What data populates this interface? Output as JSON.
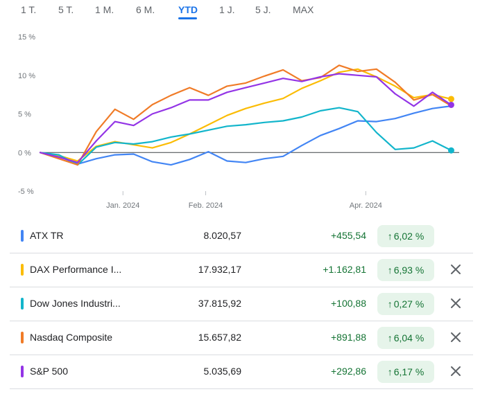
{
  "tabs": [
    {
      "label": "1 T."
    },
    {
      "label": "5 T."
    },
    {
      "label": "1 M."
    },
    {
      "label": "6 M."
    },
    {
      "label": "YTD",
      "active": true
    },
    {
      "label": "1 J."
    },
    {
      "label": "5 J."
    },
    {
      "label": "MAX"
    }
  ],
  "chart_data": {
    "type": "line",
    "y_unit": "%",
    "ylim": [
      -5,
      15
    ],
    "yticks": [
      "15 %",
      "10 %",
      "5 %",
      "0 %",
      "-5 %"
    ],
    "ytick_values": [
      15,
      10,
      5,
      0,
      -5
    ],
    "x_range": [
      "2023-12-01",
      "2024-05-06"
    ],
    "xticks": [
      {
        "label": "Jan. 2024",
        "date": "2024-01-01"
      },
      {
        "label": "Feb. 2024",
        "date": "2024-02-01"
      },
      {
        "label": "Apr. 2024",
        "date": "2024-04-01"
      }
    ],
    "baseline": 0,
    "series": [
      {
        "name": "ATX TR",
        "color": "#4285f4",
        "end_marker": false,
        "points": [
          [
            "2023-12-01",
            0
          ],
          [
            "2023-12-08",
            -0.5
          ],
          [
            "2023-12-15",
            -1.5
          ],
          [
            "2023-12-22",
            -0.8
          ],
          [
            "2023-12-29",
            -0.3
          ],
          [
            "2024-01-05",
            -0.2
          ],
          [
            "2024-01-12",
            -1.2
          ],
          [
            "2024-01-19",
            -1.6
          ],
          [
            "2024-01-26",
            -0.9
          ],
          [
            "2024-02-02",
            0.1
          ],
          [
            "2024-02-09",
            -1.1
          ],
          [
            "2024-02-16",
            -1.3
          ],
          [
            "2024-02-23",
            -0.8
          ],
          [
            "2024-03-01",
            -0.5
          ],
          [
            "2024-03-08",
            0.9
          ],
          [
            "2024-03-15",
            2.2
          ],
          [
            "2024-03-22",
            3.1
          ],
          [
            "2024-03-29",
            4.1
          ],
          [
            "2024-04-05",
            4.0
          ],
          [
            "2024-04-12",
            4.4
          ],
          [
            "2024-04-19",
            5.1
          ],
          [
            "2024-04-26",
            5.7
          ],
          [
            "2024-05-03",
            6.02
          ]
        ]
      },
      {
        "name": "DAX Performance I...",
        "color": "#fbbc04",
        "end_marker": true,
        "points": [
          [
            "2023-12-01",
            0
          ],
          [
            "2023-12-08",
            -0.4
          ],
          [
            "2023-12-15",
            -1.1
          ],
          [
            "2023-12-22",
            0.8
          ],
          [
            "2023-12-29",
            1.4
          ],
          [
            "2024-01-05",
            1.0
          ],
          [
            "2024-01-12",
            0.6
          ],
          [
            "2024-01-19",
            1.3
          ],
          [
            "2024-01-26",
            2.4
          ],
          [
            "2024-02-02",
            3.6
          ],
          [
            "2024-02-09",
            4.8
          ],
          [
            "2024-02-16",
            5.7
          ],
          [
            "2024-02-23",
            6.4
          ],
          [
            "2024-03-01",
            7.0
          ],
          [
            "2024-03-08",
            8.3
          ],
          [
            "2024-03-15",
            9.3
          ],
          [
            "2024-03-22",
            10.4
          ],
          [
            "2024-03-29",
            10.8
          ],
          [
            "2024-04-05",
            9.8
          ],
          [
            "2024-04-12",
            8.6
          ],
          [
            "2024-04-19",
            7.1
          ],
          [
            "2024-04-26",
            7.5
          ],
          [
            "2024-05-03",
            6.93
          ]
        ]
      },
      {
        "name": "Dow Jones Industri...",
        "color": "#12b5cb",
        "end_marker": true,
        "points": [
          [
            "2023-12-01",
            0
          ],
          [
            "2023-12-08",
            -0.3
          ],
          [
            "2023-12-15",
            -1.6
          ],
          [
            "2023-12-22",
            0.7
          ],
          [
            "2023-12-29",
            1.3
          ],
          [
            "2024-01-05",
            1.1
          ],
          [
            "2024-01-12",
            1.4
          ],
          [
            "2024-01-19",
            2.0
          ],
          [
            "2024-01-26",
            2.4
          ],
          [
            "2024-02-02",
            2.9
          ],
          [
            "2024-02-09",
            3.4
          ],
          [
            "2024-02-16",
            3.6
          ],
          [
            "2024-02-23",
            3.9
          ],
          [
            "2024-03-01",
            4.1
          ],
          [
            "2024-03-08",
            4.6
          ],
          [
            "2024-03-15",
            5.4
          ],
          [
            "2024-03-22",
            5.8
          ],
          [
            "2024-03-29",
            5.3
          ],
          [
            "2024-04-05",
            2.6
          ],
          [
            "2024-04-12",
            0.4
          ],
          [
            "2024-04-19",
            0.6
          ],
          [
            "2024-04-26",
            1.5
          ],
          [
            "2024-05-03",
            0.27
          ]
        ]
      },
      {
        "name": "Nasdaq Composite",
        "color": "#f07b27",
        "end_marker": false,
        "points": [
          [
            "2023-12-01",
            0
          ],
          [
            "2023-12-08",
            -0.8
          ],
          [
            "2023-12-15",
            -1.6
          ],
          [
            "2023-12-22",
            2.7
          ],
          [
            "2023-12-29",
            5.6
          ],
          [
            "2024-01-05",
            4.3
          ],
          [
            "2024-01-12",
            6.2
          ],
          [
            "2024-01-19",
            7.4
          ],
          [
            "2024-01-26",
            8.4
          ],
          [
            "2024-02-02",
            7.4
          ],
          [
            "2024-02-09",
            8.6
          ],
          [
            "2024-02-16",
            9.0
          ],
          [
            "2024-02-23",
            9.9
          ],
          [
            "2024-03-01",
            10.7
          ],
          [
            "2024-03-08",
            9.3
          ],
          [
            "2024-03-15",
            9.7
          ],
          [
            "2024-03-22",
            11.3
          ],
          [
            "2024-03-29",
            10.5
          ],
          [
            "2024-04-05",
            10.8
          ],
          [
            "2024-04-12",
            9.1
          ],
          [
            "2024-04-19",
            6.8
          ],
          [
            "2024-04-26",
            7.5
          ],
          [
            "2024-05-03",
            6.04
          ]
        ]
      },
      {
        "name": "S&P 500",
        "color": "#9334e6",
        "end_marker": true,
        "points": [
          [
            "2023-12-01",
            0
          ],
          [
            "2023-12-08",
            -0.6
          ],
          [
            "2023-12-15",
            -1.3
          ],
          [
            "2023-12-22",
            1.5
          ],
          [
            "2023-12-29",
            4.0
          ],
          [
            "2024-01-05",
            3.5
          ],
          [
            "2024-01-12",
            5.0
          ],
          [
            "2024-01-19",
            5.8
          ],
          [
            "2024-01-26",
            6.8
          ],
          [
            "2024-02-02",
            6.8
          ],
          [
            "2024-02-09",
            7.8
          ],
          [
            "2024-02-16",
            8.4
          ],
          [
            "2024-02-23",
            9.0
          ],
          [
            "2024-03-01",
            9.6
          ],
          [
            "2024-03-08",
            9.2
          ],
          [
            "2024-03-15",
            9.8
          ],
          [
            "2024-03-22",
            10.2
          ],
          [
            "2024-03-29",
            10.0
          ],
          [
            "2024-04-05",
            9.8
          ],
          [
            "2024-04-12",
            7.6
          ],
          [
            "2024-04-19",
            6.0
          ],
          [
            "2024-04-26",
            7.8
          ],
          [
            "2024-05-03",
            6.17
          ]
        ]
      }
    ]
  },
  "rows": [
    {
      "name": "ATX TR",
      "price": "8.020,57",
      "change": "+455,54",
      "percent": "6,02 %",
      "color": "#4285f4",
      "removable": false
    },
    {
      "name": "DAX Performance I...",
      "price": "17.932,17",
      "change": "+1.162,81",
      "percent": "6,93 %",
      "color": "#fbbc04",
      "removable": true
    },
    {
      "name": "Dow Jones Industri...",
      "price": "37.815,92",
      "change": "+100,88",
      "percent": "0,27 %",
      "color": "#12b5cb",
      "removable": true
    },
    {
      "name": "Nasdaq Composite",
      "price": "15.657,82",
      "change": "+891,88",
      "percent": "6,04 %",
      "color": "#f07b27",
      "removable": true
    },
    {
      "name": "S&P 500",
      "price": "5.035,69",
      "change": "+292,86",
      "percent": "6,17 %",
      "color": "#9334e6",
      "removable": true
    }
  ],
  "icons": {
    "up": "arrow-up-icon",
    "remove": "close-icon"
  }
}
